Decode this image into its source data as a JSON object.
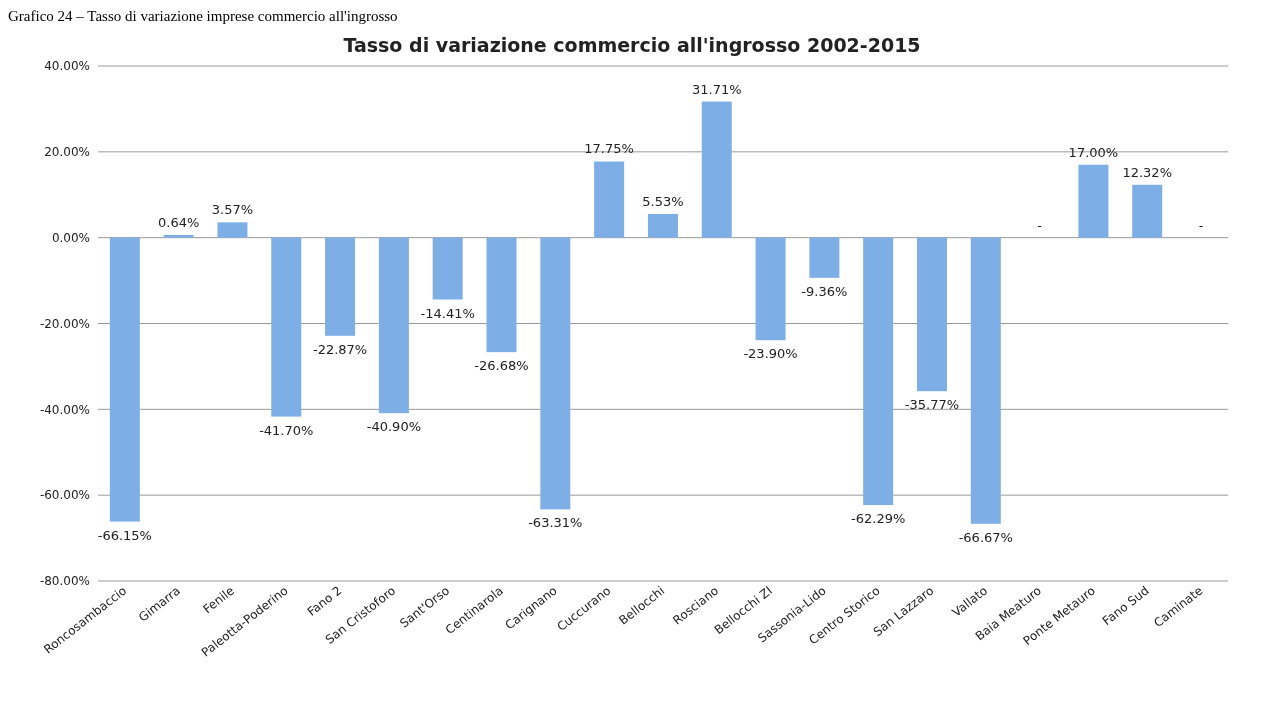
{
  "chart_data": {
    "type": "bar",
    "title": "Tasso di variazione commercio all'ingrosso 2002-2015",
    "annotations": [
      "Grafico 24 – Tasso di variazione imprese commercio all'ingrosso"
    ],
    "categories": [
      "Roncosambaccio",
      "Gimarra",
      "Fenile",
      "Paleotta-Poderino",
      "Fano 2",
      "San Cristoforo",
      "Sant'Orso",
      "Centinarola",
      "Carignano",
      "Cuccurano",
      "Bellocchi",
      "Rosciano",
      "Bellocchi ZI",
      "Sassonia-Lido",
      "Centro Storico",
      "San Lazzaro",
      "Vallato",
      "Baia Meaturo",
      "Ponte Metauro",
      "Fano Sud",
      "Caminate"
    ],
    "values": [
      -66.15,
      0.64,
      3.57,
      -41.7,
      -22.87,
      -40.9,
      -14.41,
      -26.68,
      -63.31,
      17.75,
      5.53,
      31.71,
      -23.9,
      -9.36,
      -62.29,
      -35.77,
      -66.67,
      0,
      17.0,
      12.32,
      0
    ],
    "value_labels": [
      "-66.15%",
      "0.64%",
      "3.57%",
      "-41.70%",
      "-22.87%",
      "-40.90%",
      "-14.41%",
      "-26.68%",
      "-63.31%",
      "17.75%",
      "5.53%",
      "31.71%",
      "-23.90%",
      "-9.36%",
      "-62.29%",
      "-35.77%",
      "-66.67%",
      "-",
      "17.00%",
      "12.32%",
      "-"
    ],
    "color": "#7eaee6",
    "ylim": [
      -80,
      40
    ],
    "yticks": [
      {
        "value": -80,
        "label": "-80.00%"
      },
      {
        "value": -60,
        "label": "-60.00%"
      },
      {
        "value": -40,
        "label": "-40.00%"
      },
      {
        "value": -20,
        "label": "-20.00%"
      },
      {
        "value": 0,
        "label": "0.00%"
      },
      {
        "value": 20,
        "label": "20.00%"
      },
      {
        "value": 40,
        "label": "40.00%"
      }
    ],
    "grid": "y"
  }
}
